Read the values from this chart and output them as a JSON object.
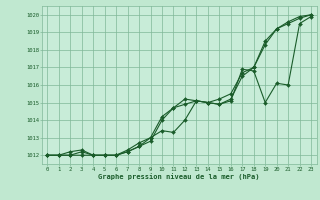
{
  "title": "Graphe pression niveau de la mer (hPa)",
  "background_color": "#c0e8d0",
  "plot_bg_color": "#c8ecd8",
  "grid_color": "#80b898",
  "line_color": "#1a5c2a",
  "xlim": [
    -0.5,
    23.5
  ],
  "ylim": [
    1011.5,
    1020.5
  ],
  "xticks": [
    0,
    1,
    2,
    3,
    4,
    5,
    6,
    7,
    8,
    9,
    10,
    11,
    12,
    13,
    14,
    15,
    16,
    17,
    18,
    19,
    20,
    21,
    22,
    23
  ],
  "yticks": [
    1012,
    1013,
    1014,
    1015,
    1016,
    1017,
    1018,
    1019,
    1020
  ],
  "hours": [
    0,
    1,
    2,
    3,
    4,
    5,
    6,
    7,
    8,
    9,
    10,
    11,
    12,
    13,
    14,
    15,
    16,
    17,
    18,
    19,
    20,
    21,
    22,
    23
  ],
  "line1": [
    1012.0,
    1012.0,
    1012.0,
    1012.0,
    1012.0,
    1012.0,
    1012.0,
    1012.2,
    1012.5,
    1012.8,
    1014.0,
    1014.7,
    1014.9,
    1015.1,
    1015.0,
    1014.9,
    1015.2,
    1016.5,
    1017.0,
    1018.3,
    1019.2,
    1019.5,
    1019.8,
    1020.0
  ],
  "line2": [
    1012.0,
    1012.0,
    1012.0,
    1012.2,
    1012.0,
    1012.0,
    1012.0,
    1012.2,
    1012.5,
    1013.0,
    1014.2,
    1014.7,
    1015.2,
    1015.1,
    1015.0,
    1015.2,
    1015.5,
    1016.7,
    1017.0,
    1018.5,
    1019.2,
    1019.6,
    1019.9,
    1020.0
  ],
  "line3": [
    1012.0,
    1012.0,
    1012.2,
    1012.3,
    1012.0,
    1012.0,
    1012.0,
    1012.3,
    1012.7,
    1013.0,
    1013.4,
    1013.3,
    1014.0,
    1015.1,
    1015.0,
    1014.9,
    1015.1,
    1016.9,
    1016.8,
    1015.0,
    1016.1,
    1016.0,
    1019.5,
    1019.9
  ]
}
